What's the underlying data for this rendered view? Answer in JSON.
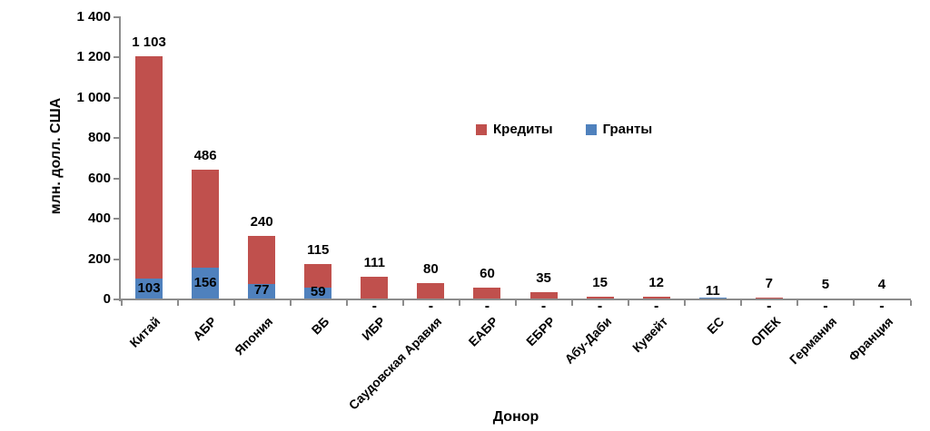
{
  "chart_data": {
    "type": "bar",
    "stacked": true,
    "title": "",
    "xlabel": "Донор",
    "ylabel": "млн. долл. США",
    "ylim": [
      0,
      1400
    ],
    "grid": false,
    "legend_position": "upper-center",
    "yticks": [
      {
        "value": 0,
        "label": "0"
      },
      {
        "value": 200,
        "label": "200"
      },
      {
        "value": 400,
        "label": "400"
      },
      {
        "value": 600,
        "label": "600"
      },
      {
        "value": 800,
        "label": "800"
      },
      {
        "value": 1000,
        "label": "1 000"
      },
      {
        "value": 1200,
        "label": "1 200"
      },
      {
        "value": 1400,
        "label": "1 400"
      }
    ],
    "categories": [
      "Китай",
      "АБР",
      "Япония",
      "ВБ",
      "ИБР",
      "Саудовская Аравия",
      "ЕАБР",
      "ЕБРР",
      "Абу-Даби",
      "Кувейт",
      "ЕС",
      "ОПЕК",
      "Германия",
      "Франция"
    ],
    "series": [
      {
        "name": "Кредиты",
        "color": "#C0504D",
        "values": [
          1103,
          486,
          240,
          115,
          111,
          80,
          60,
          35,
          15,
          12,
          0,
          7,
          5,
          4
        ]
      },
      {
        "name": "Гранты",
        "color": "#4F81BD",
        "values": [
          103,
          156,
          77,
          59,
          0,
          0,
          0,
          0,
          0,
          0,
          11,
          0,
          0,
          0
        ]
      }
    ],
    "bars": [
      {
        "category": "Китай",
        "credits": 1103,
        "grants": 103,
        "bar_label": "1 103",
        "grants_label": "103",
        "zero_label": null
      },
      {
        "category": "АБР",
        "credits": 486,
        "grants": 156,
        "bar_label": "486",
        "grants_label": "156",
        "zero_label": null
      },
      {
        "category": "Япония",
        "credits": 240,
        "grants": 77,
        "bar_label": "240",
        "grants_label": "77",
        "zero_label": null
      },
      {
        "category": "ВБ",
        "credits": 115,
        "grants": 59,
        "bar_label": "115",
        "grants_label": "59",
        "zero_label": null
      },
      {
        "category": "ИБР",
        "credits": 111,
        "grants": 0,
        "bar_label": "111",
        "grants_label": null,
        "zero_label": "-"
      },
      {
        "category": "Саудовская Аравия",
        "credits": 80,
        "grants": 0,
        "bar_label": "80",
        "grants_label": null,
        "zero_label": "-"
      },
      {
        "category": "ЕАБР",
        "credits": 60,
        "grants": 0,
        "bar_label": "60",
        "grants_label": null,
        "zero_label": "-"
      },
      {
        "category": "ЕБРР",
        "credits": 35,
        "grants": 0,
        "bar_label": "35",
        "grants_label": null,
        "zero_label": "-"
      },
      {
        "category": "Абу-Даби",
        "credits": 15,
        "grants": 0,
        "bar_label": "15",
        "grants_label": null,
        "zero_label": "-"
      },
      {
        "category": "Кувейт",
        "credits": 12,
        "grants": 0,
        "bar_label": "12",
        "grants_label": null,
        "zero_label": "-"
      },
      {
        "category": "ЕС",
        "credits": 0,
        "grants": 11,
        "bar_label": "11",
        "grants_label": null,
        "zero_label": null
      },
      {
        "category": "ОПЕК",
        "credits": 7,
        "grants": 0,
        "bar_label": "7",
        "grants_label": null,
        "zero_label": "-"
      },
      {
        "category": "Германия",
        "credits": 5,
        "grants": 0,
        "bar_label": "5",
        "grants_label": null,
        "zero_label": "-"
      },
      {
        "category": "Франция",
        "credits": 4,
        "grants": 0,
        "bar_label": "4",
        "grants_label": null,
        "zero_label": "-"
      }
    ]
  },
  "colors": {
    "credits": "#C0504D",
    "grants": "#4F81BD",
    "axis_line": "#8C8C8C",
    "text": "#000000",
    "background": "#FFFFFF"
  }
}
